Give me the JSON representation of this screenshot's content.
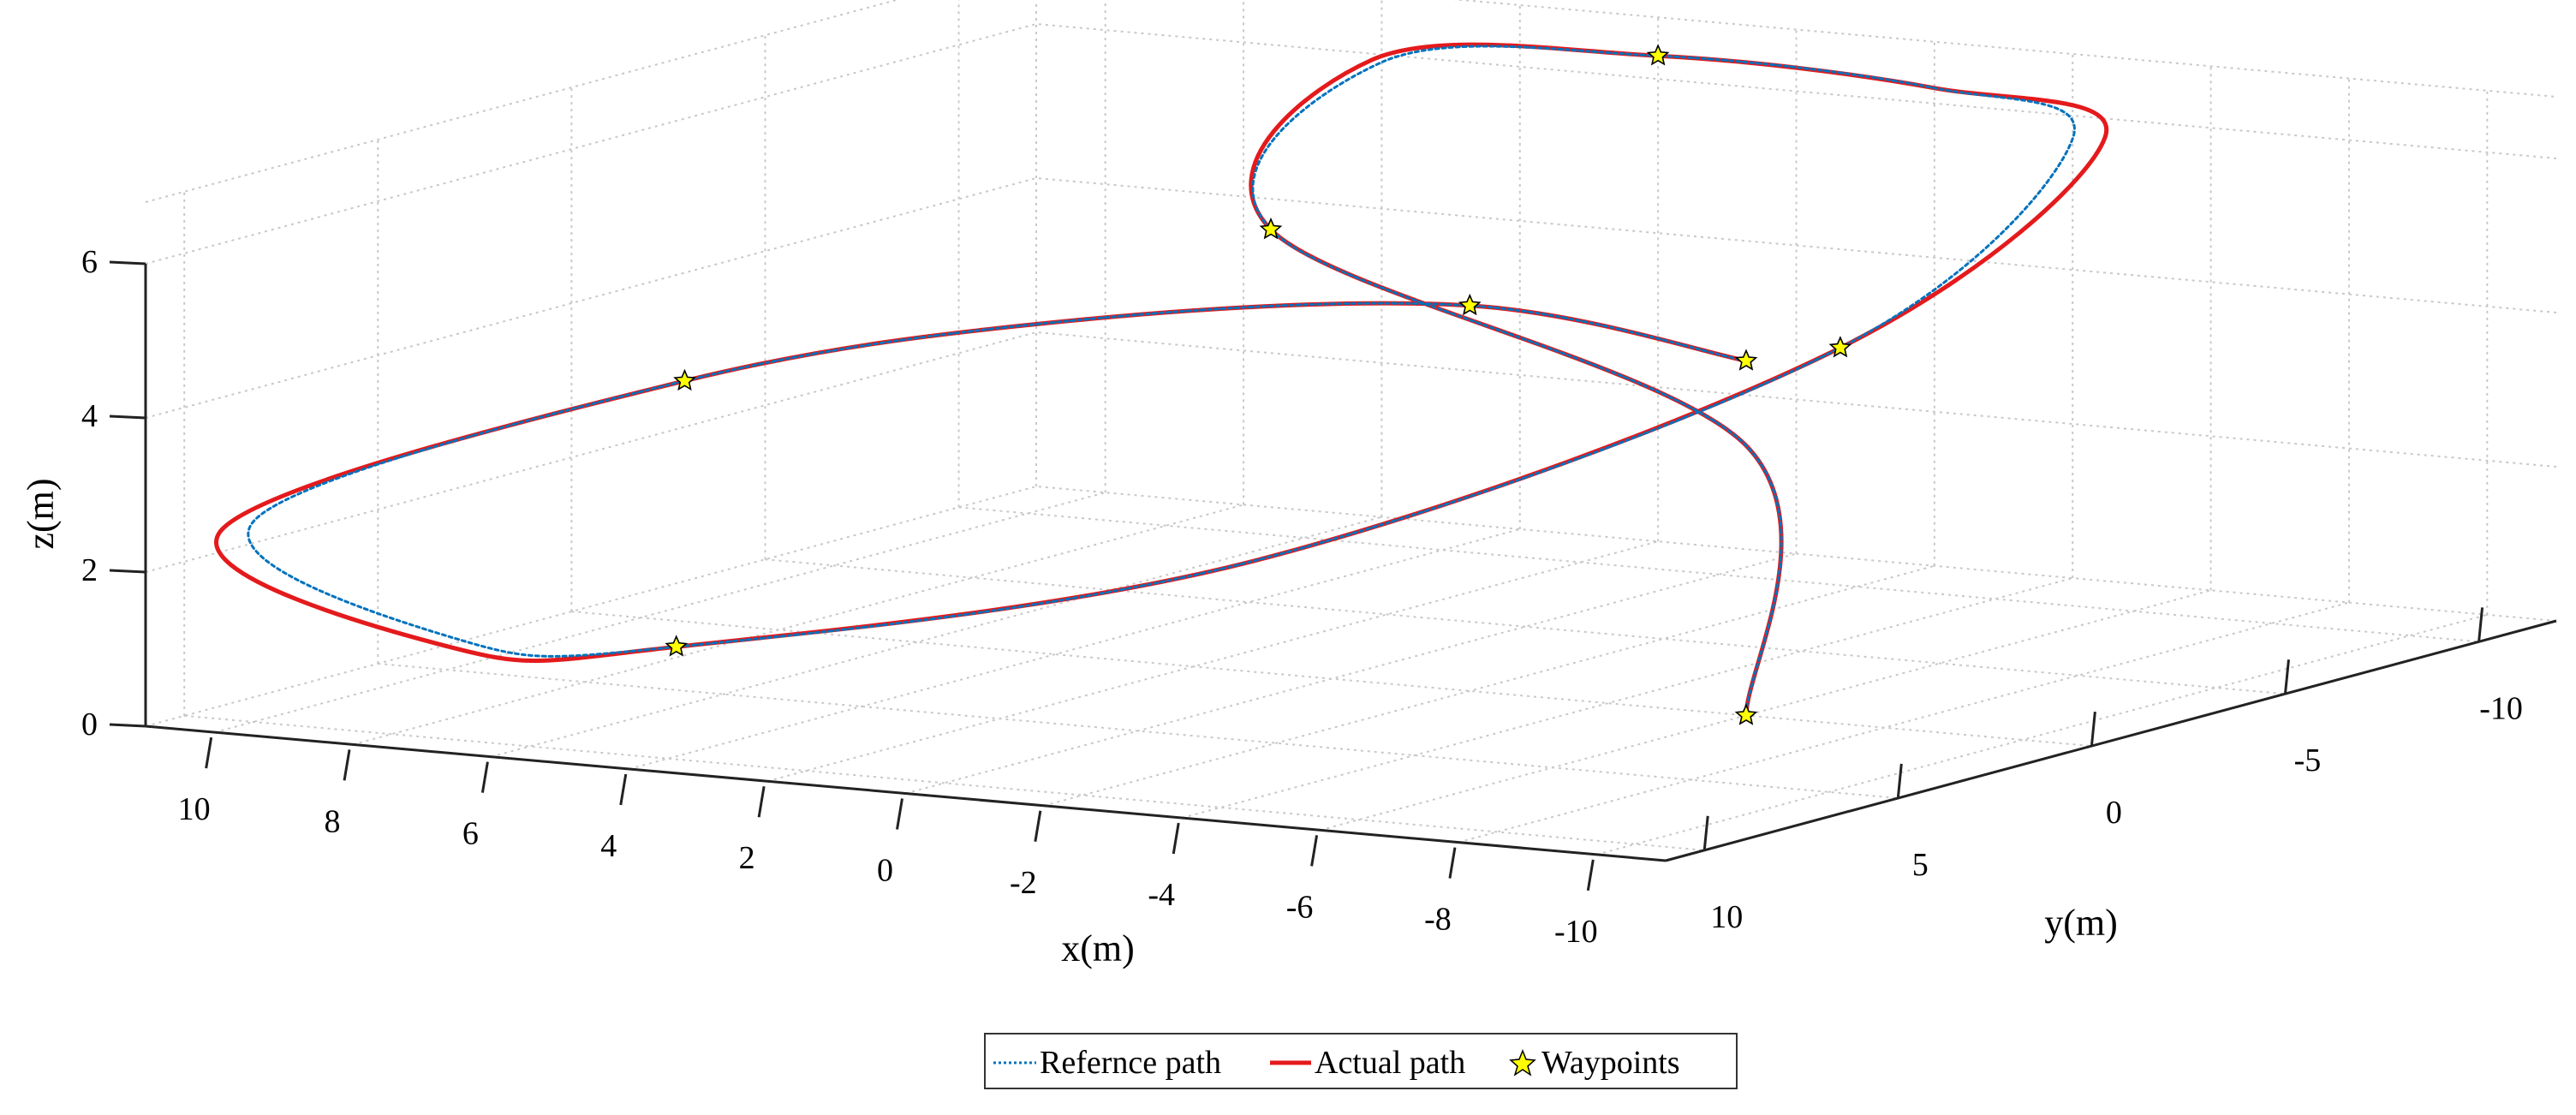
{
  "chart_data": {
    "type": "line3d",
    "title": "",
    "xlabel": "x(m)",
    "ylabel": "y(m)",
    "zlabel": "z(m)",
    "xlim": [
      -11,
      11
    ],
    "ylim": [
      -12,
      11
    ],
    "zlim": [
      0,
      6
    ],
    "x_ticks": [
      "10",
      "8",
      "6",
      "4",
      "2",
      "0",
      "-2",
      "-4",
      "-6",
      "-8",
      "-10"
    ],
    "y_ticks": [
      "10",
      "5",
      "0",
      "-5",
      "-10"
    ],
    "z_ticks": [
      "0",
      "2",
      "4",
      "6"
    ],
    "grid": true,
    "legend_position": "bottom",
    "legend": [
      "Refernce path",
      "Actual path",
      "Waypoints"
    ],
    "colors": {
      "reference": "#0072bd",
      "actual": "#e41a1c",
      "waypoint_fill": "#ffff00",
      "waypoint_edge": "#000000"
    },
    "series": [
      {
        "name": "Refernce path",
        "style": "dotted",
        "points": [
          [
            -6,
            0,
            4.6
          ],
          [
            -2,
            0,
            5
          ],
          [
            2,
            3,
            4.9
          ],
          [
            6,
            6,
            4.2
          ],
          [
            10,
            10,
            2.6
          ],
          [
            7,
            10,
            1.3
          ],
          [
            5,
            8,
            1.1
          ],
          [
            0,
            2,
            1.8
          ],
          [
            -4,
            -6,
            3.8
          ],
          [
            -4,
            -12,
            5.7
          ],
          [
            -2,
            -12,
            6.2
          ],
          [
            2,
            -12,
            6.3
          ],
          [
            6,
            -12,
            5.9
          ],
          [
            2,
            -2,
            5.4
          ],
          [
            -6,
            0,
            3.5
          ],
          [
            -6,
            0,
            0
          ]
        ]
      },
      {
        "name": "Actual path",
        "style": "solid",
        "points": [
          [
            -6,
            0,
            4.6
          ],
          [
            -2,
            0,
            5
          ],
          [
            2,
            3,
            4.9
          ],
          [
            6,
            6,
            4.2
          ],
          [
            10.3,
            10.3,
            2.5
          ],
          [
            7,
            10.1,
            1.2
          ],
          [
            5,
            8,
            1.1
          ],
          [
            0,
            2,
            1.8
          ],
          [
            -4,
            -6,
            3.8
          ],
          [
            -4.3,
            -12.3,
            5.7
          ],
          [
            -2,
            -12,
            6.2
          ],
          [
            2,
            -12,
            6.3
          ],
          [
            6.2,
            -12.1,
            5.9
          ],
          [
            2,
            -2,
            5.4
          ],
          [
            -6,
            0,
            3.5
          ],
          [
            -6,
            0,
            0
          ]
        ]
      }
    ],
    "waypoints": [
      [
        -6,
        0,
        4.6
      ],
      [
        -2,
        0,
        5
      ],
      [
        6,
        6,
        4.2
      ],
      [
        5,
        8,
        1.1
      ],
      [
        -4,
        -6,
        3.8
      ],
      [
        2,
        -12,
        6.3
      ],
      [
        2,
        -2,
        5.4
      ],
      [
        -6,
        0,
        0
      ]
    ]
  }
}
